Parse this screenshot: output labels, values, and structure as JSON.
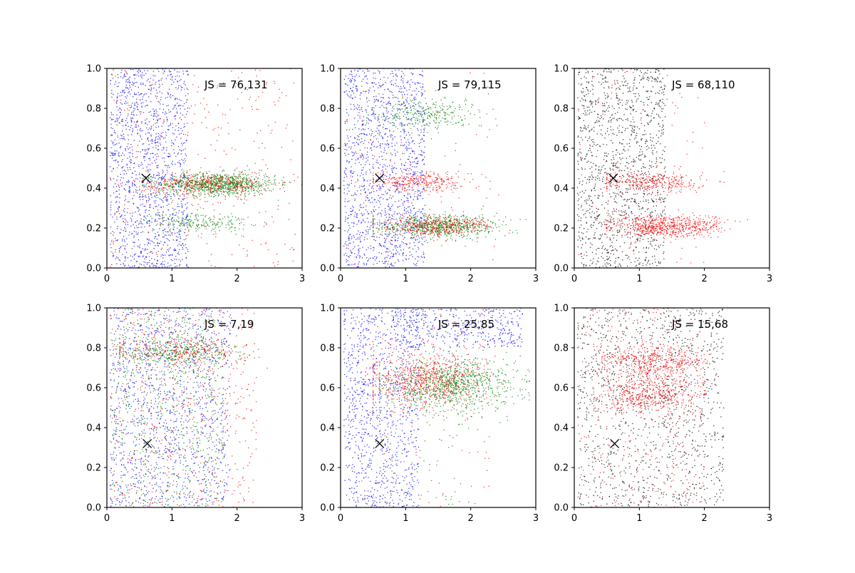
{
  "chart_data": [
    {
      "type": "scatter",
      "annotation": "JS = 76,131",
      "xlim": [
        0,
        3
      ],
      "ylim": [
        0,
        1
      ],
      "xticks": [
        0,
        1,
        2,
        3
      ],
      "yticks": [
        0.0,
        0.2,
        0.4,
        0.6,
        0.8,
        1.0
      ],
      "marker": {
        "x": 0.6,
        "y": 0.45
      },
      "series": [
        {
          "color": "#0000ff",
          "count": 1400,
          "clusters": [
            {
              "weight": 1,
              "kind": "uniform",
              "x": [
                0.05,
                1.25
              ],
              "y": [
                0,
                1
              ]
            }
          ]
        },
        {
          "color": "#008000",
          "count": 1150,
          "clusters": [
            {
              "weight": 0.8,
              "kind": "band",
              "cx": 1.7,
              "sx": 0.45,
              "xmin": 0.55,
              "xmax": 3.0,
              "cy": 0.42,
              "sy": 0.028
            },
            {
              "weight": 0.2,
              "kind": "band",
              "cx": 1.4,
              "sx": 0.4,
              "xmin": 0.5,
              "xmax": 2.6,
              "cy": 0.23,
              "sy": 0.025
            }
          ]
        },
        {
          "color": "#ff0000",
          "count": 700,
          "clusters": [
            {
              "weight": 0.55,
              "kind": "band",
              "cx": 1.5,
              "sx": 0.5,
              "xmin": 0.5,
              "xmax": 3.0,
              "cy": 0.42,
              "sy": 0.03
            },
            {
              "weight": 0.45,
              "kind": "uniform",
              "x": [
                0.05,
                2.9
              ],
              "y": [
                0,
                1
              ]
            }
          ]
        }
      ]
    },
    {
      "type": "scatter",
      "annotation": "JS = 79,115",
      "xlim": [
        0,
        3
      ],
      "ylim": [
        0,
        1
      ],
      "xticks": [
        0,
        1,
        2,
        3
      ],
      "yticks": [
        0.0,
        0.2,
        0.4,
        0.6,
        0.8,
        1.0
      ],
      "marker": {
        "x": 0.6,
        "y": 0.45
      },
      "series": [
        {
          "color": "#0000ff",
          "count": 1400,
          "clusters": [
            {
              "weight": 1,
              "kind": "uniform",
              "x": [
                0.05,
                1.3
              ],
              "y": [
                0,
                1
              ]
            }
          ]
        },
        {
          "color": "#008000",
          "count": 1000,
          "clusters": [
            {
              "weight": 0.7,
              "kind": "band",
              "cx": 1.5,
              "sx": 0.45,
              "xmin": 0.5,
              "xmax": 2.9,
              "cy": 0.21,
              "sy": 0.028
            },
            {
              "weight": 0.3,
              "kind": "band",
              "cx": 1.3,
              "sx": 0.4,
              "xmin": 0.4,
              "xmax": 2.6,
              "cy": 0.77,
              "sy": 0.04
            }
          ]
        },
        {
          "color": "#ff0000",
          "count": 800,
          "clusters": [
            {
              "weight": 0.5,
              "kind": "band",
              "cx": 1.5,
              "sx": 0.4,
              "xmin": 0.5,
              "xmax": 2.6,
              "cy": 0.21,
              "sy": 0.025
            },
            {
              "weight": 0.4,
              "kind": "band",
              "cx": 1.2,
              "sx": 0.4,
              "xmin": 0.5,
              "xmax": 2.3,
              "cy": 0.43,
              "sy": 0.025
            },
            {
              "weight": 0.1,
              "kind": "uniform",
              "x": [
                0.05,
                2.5
              ],
              "y": [
                0,
                1
              ]
            }
          ]
        }
      ]
    },
    {
      "type": "scatter",
      "annotation": "JS = 68,110",
      "xlim": [
        0,
        3
      ],
      "ylim": [
        0,
        1
      ],
      "xticks": [
        0,
        1,
        2,
        3
      ],
      "yticks": [
        0.0,
        0.2,
        0.4,
        0.6,
        0.8,
        1.0
      ],
      "marker": {
        "x": 0.6,
        "y": 0.45
      },
      "series": [
        {
          "color": "#000000",
          "count": 1300,
          "clusters": [
            {
              "weight": 1,
              "kind": "uniform",
              "x": [
                0.05,
                1.4
              ],
              "y": [
                0,
                1
              ]
            }
          ]
        },
        {
          "color": "#ff0000",
          "count": 1100,
          "clusters": [
            {
              "weight": 0.6,
              "kind": "band",
              "cx": 1.4,
              "sx": 0.45,
              "xmin": 0.5,
              "xmax": 3.0,
              "cy": 0.21,
              "sy": 0.028
            },
            {
              "weight": 0.3,
              "kind": "band",
              "cx": 1.2,
              "sx": 0.4,
              "xmin": 0.5,
              "xmax": 2.3,
              "cy": 0.43,
              "sy": 0.025
            },
            {
              "weight": 0.1,
              "kind": "uniform",
              "x": [
                0.05,
                2.0
              ],
              "y": [
                0,
                1
              ]
            }
          ]
        }
      ]
    },
    {
      "type": "scatter",
      "annotation": "JS = 7,19",
      "xlim": [
        0,
        3
      ],
      "ylim": [
        0,
        1
      ],
      "xticks": [
        0,
        1,
        2,
        3
      ],
      "yticks": [
        0.0,
        0.2,
        0.4,
        0.6,
        0.8,
        1.0
      ],
      "marker": {
        "x": 0.62,
        "y": 0.32
      },
      "series": [
        {
          "color": "#0000ff",
          "count": 1200,
          "clusters": [
            {
              "weight": 1,
              "kind": "uniform",
              "x": [
                0.05,
                1.9
              ],
              "y": [
                0,
                1
              ]
            }
          ]
        },
        {
          "color": "#008000",
          "count": 1000,
          "clusters": [
            {
              "weight": 0.35,
              "kind": "band",
              "cx": 1.1,
              "sx": 0.5,
              "xmin": 0.2,
              "xmax": 2.8,
              "cy": 0.78,
              "sy": 0.035
            },
            {
              "weight": 0.65,
              "kind": "uniform",
              "x": [
                0.05,
                1.8
              ],
              "y": [
                0,
                1
              ]
            }
          ]
        },
        {
          "color": "#ff0000",
          "count": 800,
          "clusters": [
            {
              "weight": 0.3,
              "kind": "band",
              "cx": 1.1,
              "sx": 0.5,
              "xmin": 0.2,
              "xmax": 2.8,
              "cy": 0.78,
              "sy": 0.035
            },
            {
              "weight": 0.7,
              "kind": "uniform",
              "x": [
                0.05,
                2.3
              ],
              "y": [
                0,
                1
              ]
            }
          ]
        }
      ]
    },
    {
      "type": "scatter",
      "annotation": "JS = 25,85",
      "xlim": [
        0,
        3
      ],
      "ylim": [
        0,
        1
      ],
      "xticks": [
        0,
        1,
        2,
        3
      ],
      "yticks": [
        0.0,
        0.2,
        0.4,
        0.6,
        0.8,
        1.0
      ],
      "marker": {
        "x": 0.6,
        "y": 0.32
      },
      "series": [
        {
          "color": "#0000ff",
          "count": 1400,
          "clusters": [
            {
              "weight": 0.7,
              "kind": "uniform",
              "x": [
                0.05,
                1.2
              ],
              "y": [
                0,
                1
              ]
            },
            {
              "weight": 0.3,
              "kind": "uniform",
              "x": [
                0.8,
                2.8
              ],
              "y": [
                0.8,
                1
              ]
            }
          ]
        },
        {
          "color": "#008000",
          "count": 1000,
          "clusters": [
            {
              "weight": 0.95,
              "kind": "band",
              "cx": 1.7,
              "sx": 0.5,
              "xmin": 0.6,
              "xmax": 2.9,
              "cy": 0.62,
              "sy": 0.065
            },
            {
              "weight": 0.05,
              "kind": "uniform",
              "x": [
                0.6,
                2.0
              ],
              "y": [
                0,
                0.5
              ]
            }
          ]
        },
        {
          "color": "#ff0000",
          "count": 800,
          "clusters": [
            {
              "weight": 0.85,
              "kind": "band",
              "cx": 1.3,
              "sx": 0.45,
              "xmin": 0.5,
              "xmax": 2.5,
              "cy": 0.64,
              "sy": 0.07
            },
            {
              "weight": 0.15,
              "kind": "uniform",
              "x": [
                0.3,
                2.3
              ],
              "y": [
                0,
                1
              ]
            }
          ]
        }
      ]
    },
    {
      "type": "scatter",
      "annotation": "JS = 15,68",
      "xlim": [
        0,
        3
      ],
      "ylim": [
        0,
        1
      ],
      "xticks": [
        0,
        1,
        2,
        3
      ],
      "yticks": [
        0.0,
        0.2,
        0.4,
        0.6,
        0.8,
        1.0
      ],
      "marker": {
        "x": 0.62,
        "y": 0.32
      },
      "series": [
        {
          "color": "#000000",
          "count": 1200,
          "clusters": [
            {
              "weight": 1,
              "kind": "uniform",
              "x": [
                0.05,
                2.3
              ],
              "y": [
                0,
                1
              ]
            }
          ]
        },
        {
          "color": "#ff0000",
          "count": 1300,
          "clusters": [
            {
              "weight": 0.35,
              "kind": "band",
              "cx": 1.2,
              "sx": 0.4,
              "xmin": 0.3,
              "xmax": 2.1,
              "cy": 0.73,
              "sy": 0.045
            },
            {
              "weight": 0.35,
              "kind": "band",
              "cx": 1.1,
              "sx": 0.4,
              "xmin": 0.3,
              "xmax": 2.0,
              "cy": 0.56,
              "sy": 0.045
            },
            {
              "weight": 0.3,
              "kind": "uniform",
              "x": [
                0.05,
                2.0
              ],
              "y": [
                0,
                1
              ]
            }
          ]
        }
      ]
    }
  ]
}
